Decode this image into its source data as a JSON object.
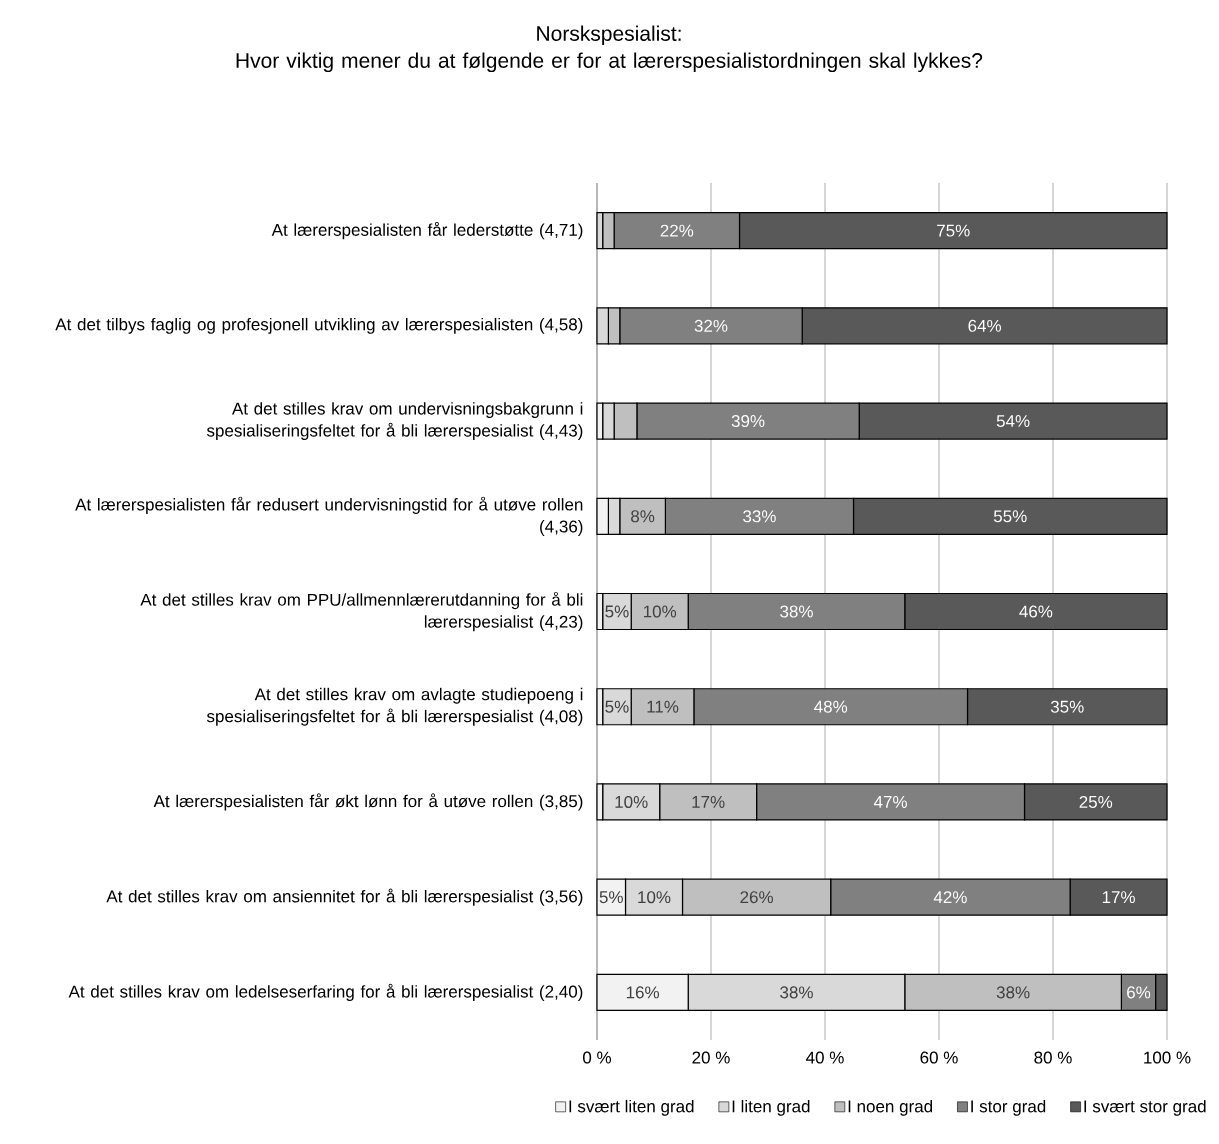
{
  "chart_data": {
    "type": "bar",
    "orientation": "horizontal",
    "stacked": true,
    "title": "Norskspesialist:",
    "subtitle": "Hvor viktig mener du at følgende er for at lærerspesialistordningen skal lykkes?",
    "categories": [
      "At lærerspesialisten får lederstøtte (4,71)",
      "At det tilbys faglig og profesjonell utvikling av lærerspesialisten (4,58)",
      "At det stilles krav om undervisningsbakgrunn i spesialiseringsfeltet for å bli lærerspesialist (4,43)",
      "At lærerspesialisten får redusert undervisningstid for å utøve rollen (4,36)",
      "At det stilles krav om PPU/allmennlærerutdanning for å bli lærerspesialist (4,23)",
      "At det stilles krav om avlagte studiepoeng i spesialiseringsfeltet for å bli lærerspesialist (4,08)",
      "At lærerspesialisten får økt lønn for å utøve rollen (3,85)",
      "At det stilles krav om ansiennitet for å bli lærerspesialist (3,56)",
      "At det stilles krav om ledelseserfaring for å bli lærerspesialist (2,40)"
    ],
    "series": [
      {
        "name": "I svært liten grad",
        "color": "#f2f2f2",
        "values": [
          0,
          0,
          1,
          2,
          1,
          1,
          1,
          5,
          16
        ],
        "value_labels": [
          null,
          null,
          null,
          null,
          null,
          null,
          null,
          "5%",
          "16%"
        ]
      },
      {
        "name": "I liten grad",
        "color": "#d9d9d9",
        "values": [
          1,
          2,
          2,
          2,
          5,
          5,
          10,
          10,
          38
        ],
        "value_labels": [
          null,
          null,
          null,
          null,
          "5%",
          "5%",
          "10%",
          "10%",
          "38%"
        ]
      },
      {
        "name": "I noen grad",
        "color": "#bfbfbf",
        "values": [
          2,
          2,
          4,
          8,
          10,
          11,
          17,
          26,
          38
        ],
        "value_labels": [
          null,
          null,
          null,
          "8%",
          "10%",
          "11%",
          "17%",
          "26%",
          "38%"
        ]
      },
      {
        "name": "I stor grad",
        "color": "#808080",
        "values": [
          22,
          32,
          39,
          33,
          38,
          48,
          47,
          42,
          6
        ],
        "value_labels": [
          "22%",
          "32%",
          "39%",
          "33%",
          "38%",
          "48%",
          "47%",
          "42%",
          "6%"
        ]
      },
      {
        "name": "I svært stor grad",
        "color": "#595959",
        "values": [
          75,
          64,
          54,
          55,
          46,
          35,
          25,
          17,
          2
        ],
        "value_labels": [
          "75%",
          "64%",
          "54%",
          "55%",
          "46%",
          "35%",
          "25%",
          "17%",
          null
        ]
      }
    ],
    "xlim": [
      0,
      100
    ],
    "xticks": [
      {
        "value": 0,
        "label": "0 %"
      },
      {
        "value": 20,
        "label": "20 %"
      },
      {
        "value": 40,
        "label": "40 %"
      },
      {
        "value": 60,
        "label": "60 %"
      },
      {
        "value": 80,
        "label": "80 %"
      },
      {
        "value": 100,
        "label": "100 %"
      }
    ],
    "grid": "x",
    "legend": "bottom"
  }
}
